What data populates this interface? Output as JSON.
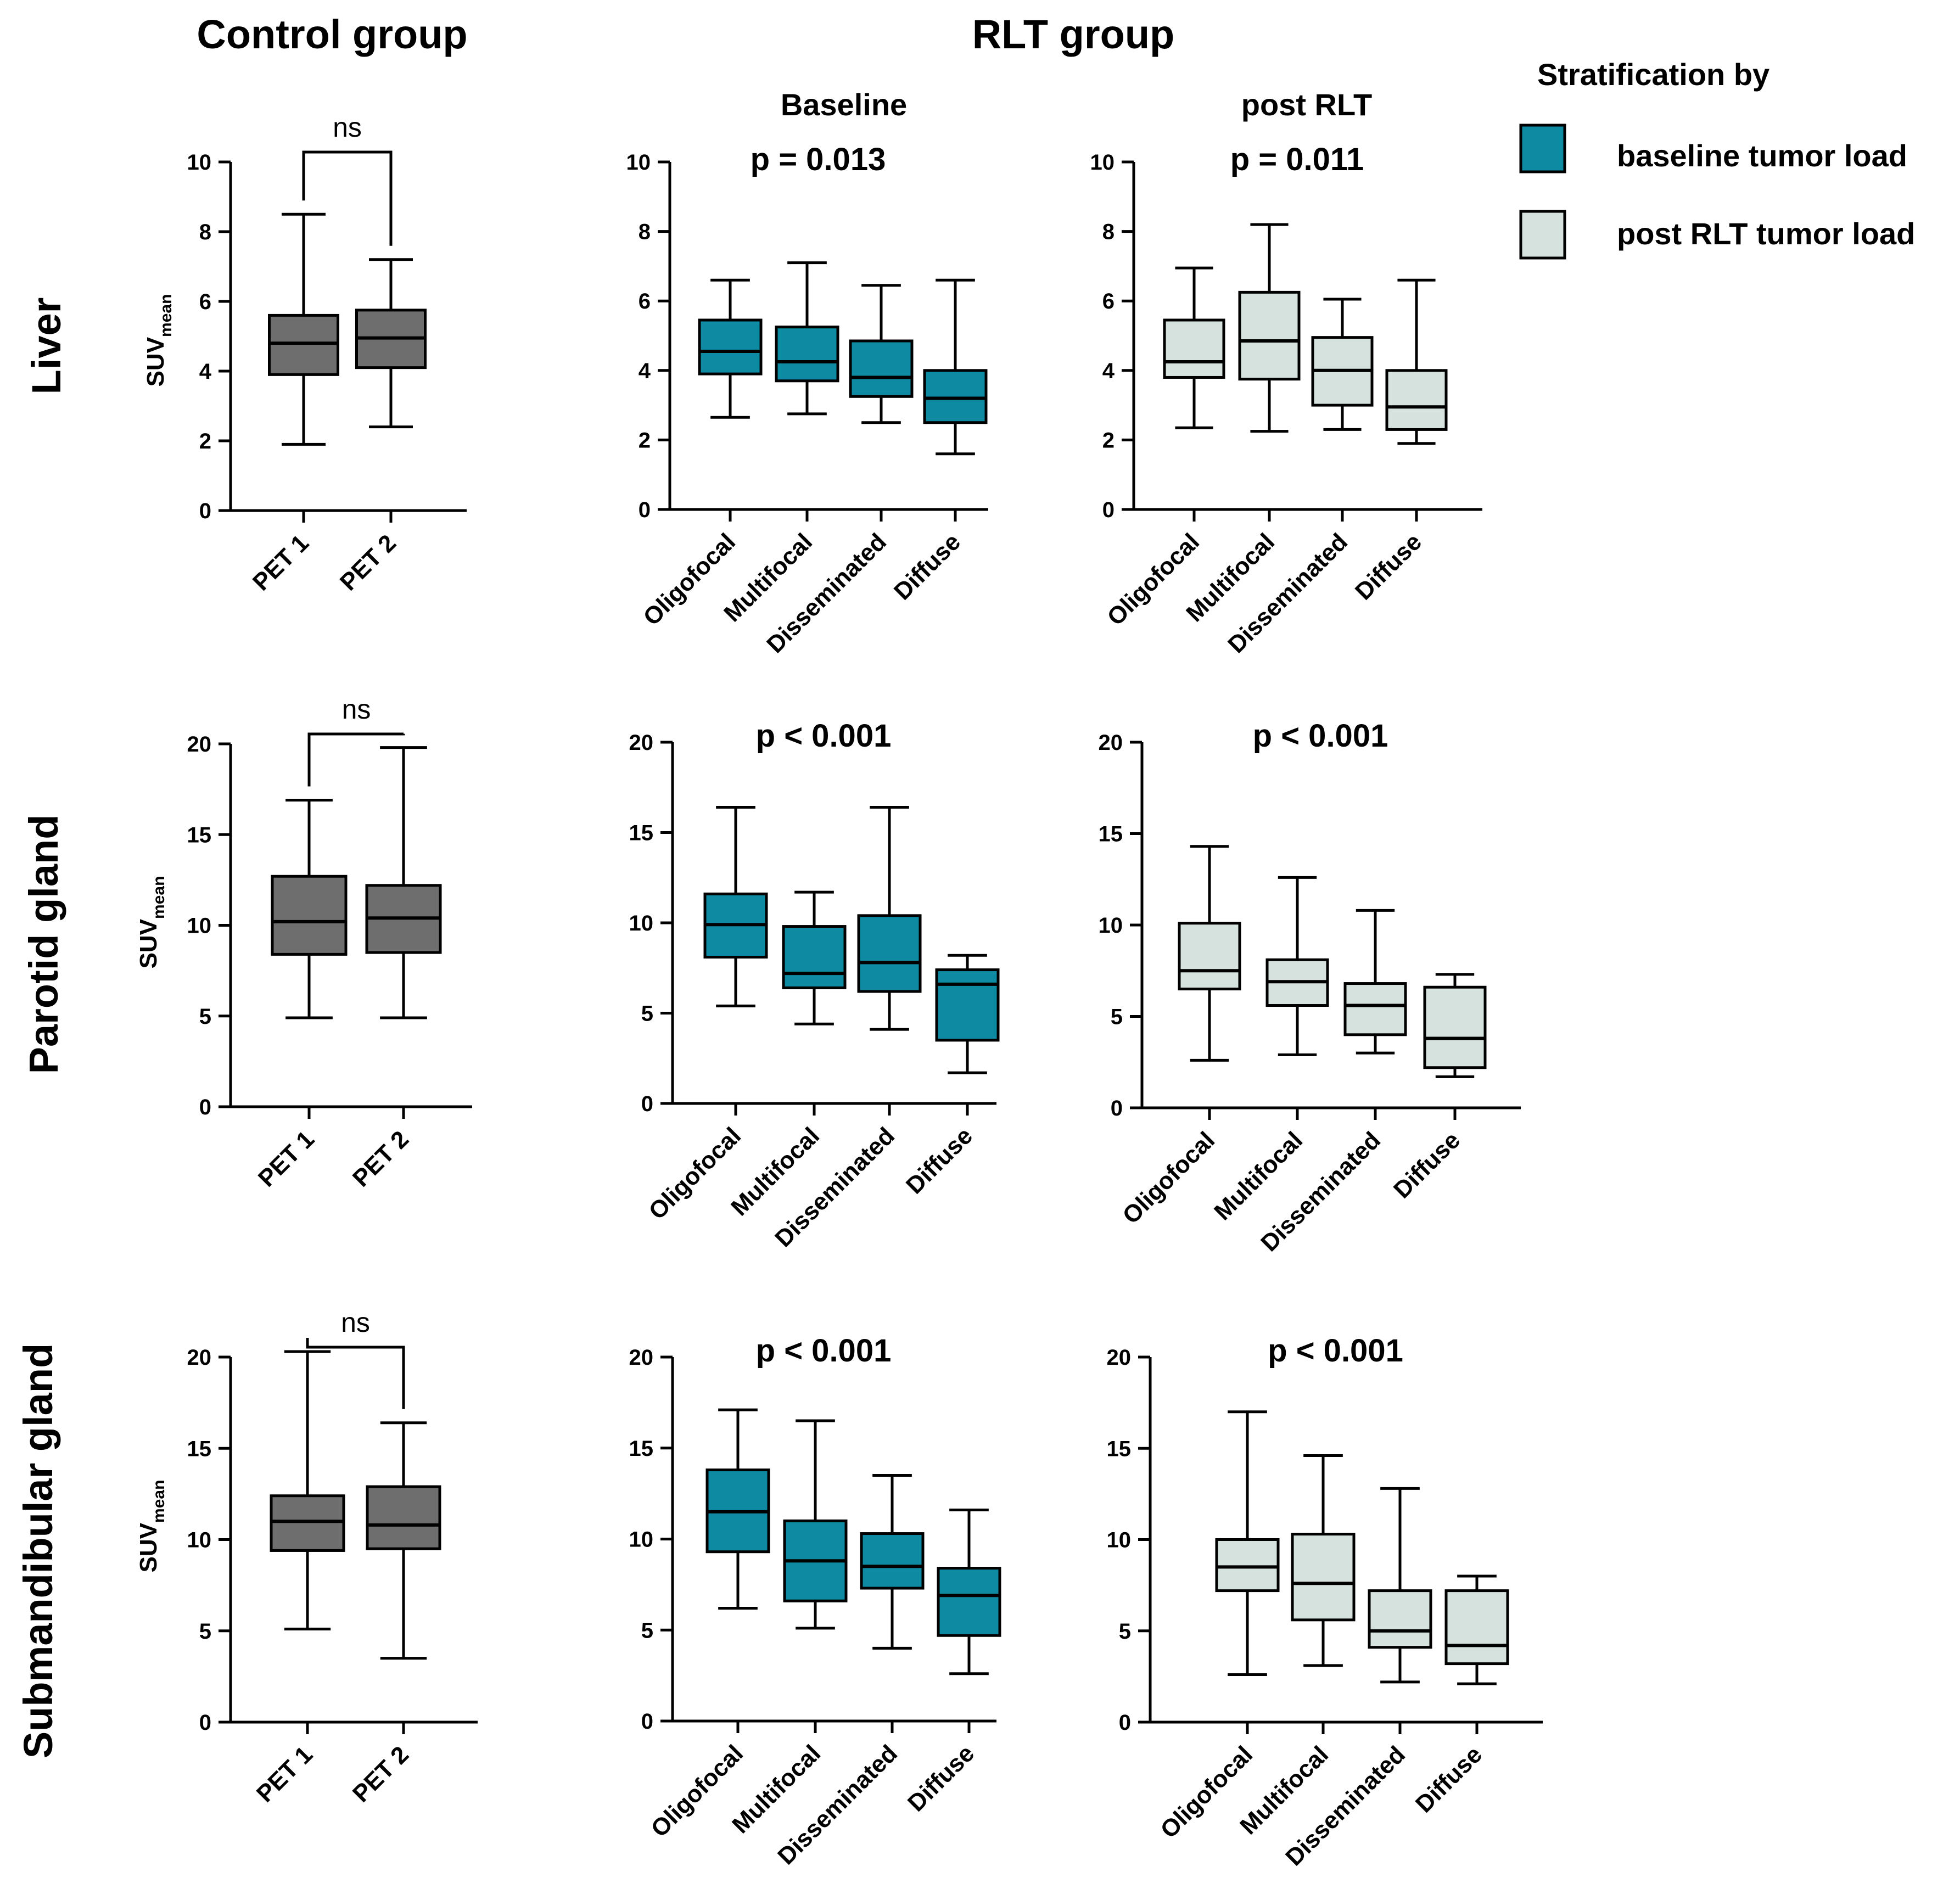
{
  "headers": {
    "control": "Control group",
    "rlt": "RLT group",
    "baseline": "Baseline",
    "post": "post RLT"
  },
  "legend": {
    "title": "Stratification by",
    "items": [
      {
        "label": "baseline tumor load",
        "color": "#0e8aa3"
      },
      {
        "label": "post RLT tumor load",
        "color": "#d6e2dd"
      }
    ]
  },
  "colors": {
    "control": "#6e6e6e",
    "baseline": "#0e8aa3",
    "post": "#d6e2dd",
    "stroke": "#000000"
  },
  "rows": [
    {
      "label": "Liver",
      "ylabel_main": "SUV",
      "ylabel_sub": "mean"
    },
    {
      "label": "Parotid gland",
      "ylabel_main": "SUV",
      "ylabel_sub": "mean"
    },
    {
      "label": "Submandibular gland",
      "ylabel_main": "SUV",
      "ylabel_sub": "mean"
    }
  ],
  "chart_data": [
    {
      "type": "box",
      "organ": "Liver",
      "group": "Control group",
      "annotation": "ns",
      "ylim": [
        0,
        10
      ],
      "ticks": [
        "0",
        "2",
        "4",
        "6",
        "8",
        "10"
      ],
      "categories": [
        "PET 1",
        "PET 2"
      ],
      "fill": "control",
      "boxes": [
        {
          "min": 1.9,
          "q1": 3.9,
          "median": 4.8,
          "q3": 5.6,
          "max": 8.5
        },
        {
          "min": 2.4,
          "q1": 4.1,
          "median": 4.95,
          "q3": 5.75,
          "max": 7.2
        }
      ]
    },
    {
      "type": "box",
      "organ": "Liver",
      "group": "Baseline",
      "annotation": "p = 0.013",
      "ylim": [
        0,
        10
      ],
      "ticks": [
        "0",
        "2",
        "4",
        "6",
        "8",
        "10"
      ],
      "categories": [
        "Oligofocal",
        "Multifocal",
        "Disseminated",
        "Diffuse"
      ],
      "fill": "baseline",
      "boxes": [
        {
          "min": 2.65,
          "q1": 3.9,
          "median": 4.55,
          "q3": 5.45,
          "max": 6.6
        },
        {
          "min": 2.75,
          "q1": 3.7,
          "median": 4.25,
          "q3": 5.25,
          "max": 7.1
        },
        {
          "min": 2.5,
          "q1": 3.25,
          "median": 3.8,
          "q3": 4.85,
          "max": 6.45
        },
        {
          "min": 1.6,
          "q1": 2.5,
          "median": 3.2,
          "q3": 4.0,
          "max": 6.6
        }
      ]
    },
    {
      "type": "box",
      "organ": "Liver",
      "group": "post RLT",
      "annotation": "p = 0.011",
      "ylim": [
        0,
        10
      ],
      "ticks": [
        "0",
        "2",
        "4",
        "6",
        "8",
        "10"
      ],
      "categories": [
        "Oligofocal",
        "Multifocal",
        "Disseminated",
        "Diffuse"
      ],
      "fill": "post",
      "boxes": [
        {
          "min": 2.35,
          "q1": 3.8,
          "median": 4.25,
          "q3": 5.45,
          "max": 6.95
        },
        {
          "min": 2.25,
          "q1": 3.75,
          "median": 4.85,
          "q3": 6.25,
          "max": 8.2
        },
        {
          "min": 2.3,
          "q1": 3.0,
          "median": 4.0,
          "q3": 4.95,
          "max": 6.05
        },
        {
          "min": 1.9,
          "q1": 2.3,
          "median": 2.95,
          "q3": 4.0,
          "max": 6.6
        }
      ]
    },
    {
      "type": "box",
      "organ": "Parotid gland",
      "group": "Control group",
      "annotation": "ns",
      "ylim": [
        0,
        20
      ],
      "ticks": [
        "0",
        "5",
        "10",
        "15",
        "20"
      ],
      "categories": [
        "PET 1",
        "PET 2"
      ],
      "fill": "control",
      "boxes": [
        {
          "min": 4.9,
          "q1": 8.4,
          "median": 10.2,
          "q3": 12.7,
          "max": 16.9
        },
        {
          "min": 4.9,
          "q1": 8.5,
          "median": 10.4,
          "q3": 12.2,
          "max": 19.8
        }
      ]
    },
    {
      "type": "box",
      "organ": "Parotid gland",
      "group": "Baseline",
      "annotation": "p < 0.001",
      "ylim": [
        0,
        20
      ],
      "ticks": [
        "0",
        "5",
        "10",
        "15",
        "20"
      ],
      "categories": [
        "Oligofocal",
        "Multifocal",
        "Disseminated",
        "Diffuse"
      ],
      "fill": "baseline",
      "boxes": [
        {
          "min": 5.4,
          "q1": 8.1,
          "median": 9.9,
          "q3": 11.6,
          "max": 16.4
        },
        {
          "min": 4.4,
          "q1": 6.4,
          "median": 7.2,
          "q3": 9.8,
          "max": 11.7
        },
        {
          "min": 4.1,
          "q1": 6.2,
          "median": 7.8,
          "q3": 10.4,
          "max": 16.4
        },
        {
          "min": 1.7,
          "q1": 3.5,
          "median": 6.6,
          "q3": 7.4,
          "max": 8.2
        }
      ]
    },
    {
      "type": "box",
      "organ": "Parotid gland",
      "group": "post RLT",
      "annotation": "p < 0.001",
      "ylim": [
        0,
        20
      ],
      "ticks": [
        "0",
        "5",
        "10",
        "15",
        "20"
      ],
      "categories": [
        "Oligofocal",
        "Multifocal",
        "Disseminated",
        "Diffuse"
      ],
      "fill": "post",
      "boxes": [
        {
          "min": 2.6,
          "q1": 6.5,
          "median": 7.5,
          "q3": 10.1,
          "max": 14.3
        },
        {
          "min": 2.9,
          "q1": 5.6,
          "median": 6.9,
          "q3": 8.1,
          "max": 12.6
        },
        {
          "min": 3.0,
          "q1": 4.0,
          "median": 5.6,
          "q3": 6.8,
          "max": 10.8
        },
        {
          "min": 1.7,
          "q1": 2.2,
          "median": 3.8,
          "q3": 6.6,
          "max": 7.3
        }
      ]
    },
    {
      "type": "box",
      "organ": "Submandibular gland",
      "group": "Control group",
      "annotation": "ns",
      "ylim": [
        0,
        20
      ],
      "ticks": [
        "0",
        "5",
        "10",
        "15",
        "20"
      ],
      "categories": [
        "PET 1",
        "PET 2"
      ],
      "fill": "control",
      "boxes": [
        {
          "min": 5.1,
          "q1": 9.4,
          "median": 11.0,
          "q3": 12.4,
          "max": 20.3
        },
        {
          "min": 3.5,
          "q1": 9.5,
          "median": 10.8,
          "q3": 12.9,
          "max": 16.4
        }
      ]
    },
    {
      "type": "box",
      "organ": "Submandibular gland",
      "group": "Baseline",
      "annotation": "p < 0.001",
      "ylim": [
        0,
        20
      ],
      "ticks": [
        "0",
        "5",
        "10",
        "15",
        "20"
      ],
      "categories": [
        "Oligofocal",
        "Multifocal",
        "Disseminated",
        "Diffuse"
      ],
      "fill": "baseline",
      "boxes": [
        {
          "min": 6.2,
          "q1": 9.3,
          "median": 11.5,
          "q3": 13.8,
          "max": 17.1
        },
        {
          "min": 5.1,
          "q1": 6.6,
          "median": 8.8,
          "q3": 11.0,
          "max": 16.5
        },
        {
          "min": 4.0,
          "q1": 7.3,
          "median": 8.5,
          "q3": 10.3,
          "max": 13.5
        },
        {
          "min": 2.6,
          "q1": 4.7,
          "median": 6.9,
          "q3": 8.4,
          "max": 11.6
        }
      ]
    },
    {
      "type": "box",
      "organ": "Submandibular gland",
      "group": "post RLT",
      "annotation": "p < 0.001",
      "ylim": [
        0,
        20
      ],
      "ticks": [
        "0",
        "5",
        "10",
        "15",
        "20"
      ],
      "categories": [
        "Oligofocal",
        "Multifocal",
        "Disseminated",
        "Diffuse"
      ],
      "fill": "post",
      "boxes": [
        {
          "min": 2.6,
          "q1": 7.2,
          "median": 8.5,
          "q3": 10.0,
          "max": 17.0
        },
        {
          "min": 3.1,
          "q1": 5.6,
          "median": 7.6,
          "q3": 10.3,
          "max": 14.6
        },
        {
          "min": 2.2,
          "q1": 4.1,
          "median": 5.0,
          "q3": 7.2,
          "max": 12.8
        },
        {
          "min": 2.1,
          "q1": 3.2,
          "median": 4.2,
          "q3": 7.2,
          "max": 8.0
        }
      ]
    }
  ]
}
